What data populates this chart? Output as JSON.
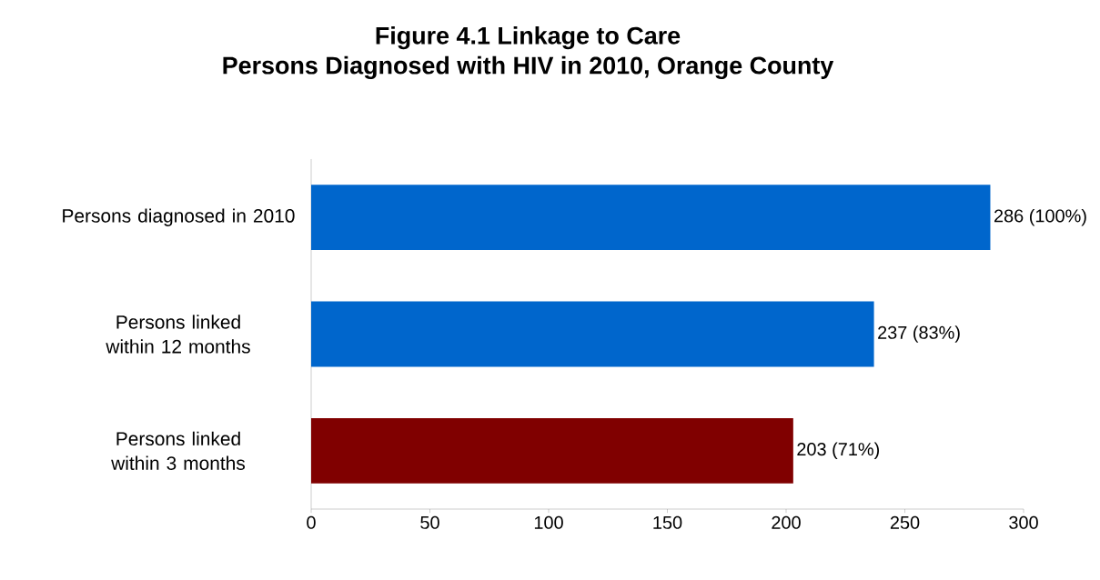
{
  "chart_data": {
    "type": "bar",
    "orientation": "horizontal",
    "title": "Figure 4.1 Linkage to Care",
    "subtitle": "Persons Diagnosed with HIV in 2010, Orange County",
    "categories": [
      "Persons diagnosed in 2010",
      "Persons linked within 12 months",
      "Persons linked within 3 months"
    ],
    "values": [
      286,
      237,
      203
    ],
    "colors": [
      "#0066cc",
      "#0066cc",
      "#800000"
    ],
    "value_labels": [
      "286 (100%)",
      "237 (83%)",
      "203 (71%)"
    ],
    "xlim": [
      0,
      300
    ],
    "xticks": [
      0,
      50,
      100,
      150,
      200,
      250,
      300
    ],
    "grid": false
  }
}
